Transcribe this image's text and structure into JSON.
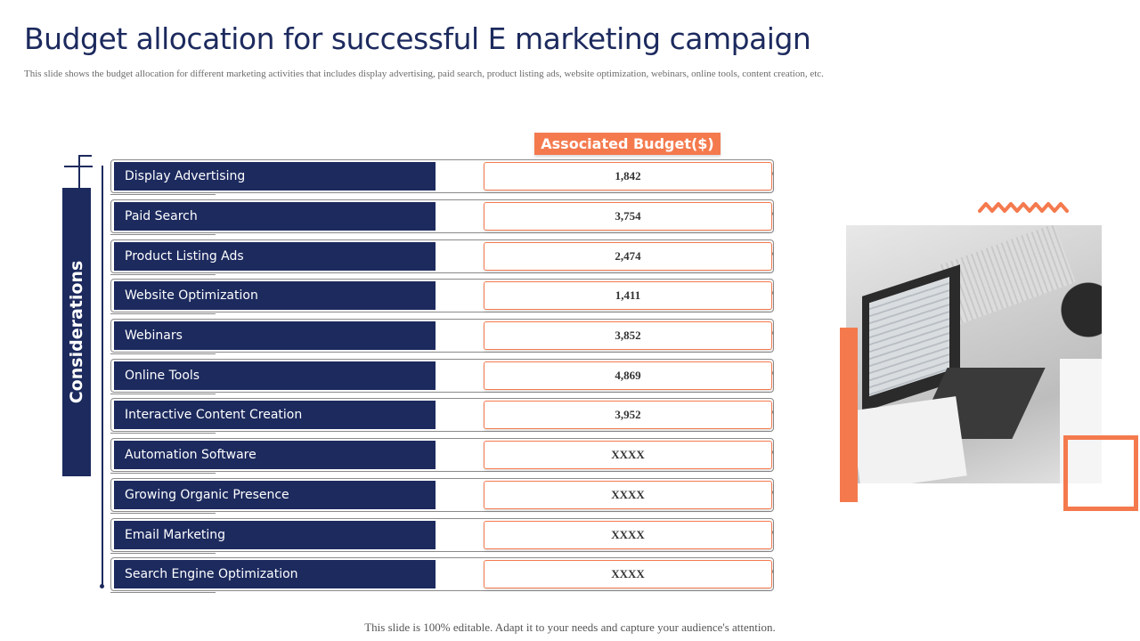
{
  "title": "Budget allocation for successful E marketing campaign",
  "subtitle": "This slide shows the budget allocation  for different marketing  activities that includes display advertising, paid search, product listing ads, website optimization, webinars, online  tools, content creation,  etc.",
  "considerations_label": "Considerations",
  "budget_header": "Associated Budget($)",
  "rows": [
    {
      "label": "Display Advertising",
      "value": "1,842"
    },
    {
      "label": "Paid Search",
      "value": "3,754"
    },
    {
      "label": "Product Listing Ads",
      "value": "2,474"
    },
    {
      "label": "Website Optimization",
      "value": "1,411"
    },
    {
      "label": "Webinars",
      "value": "3,852"
    },
    {
      "label": "Online Tools",
      "value": "4,869"
    },
    {
      "label": "Interactive Content Creation",
      "value": "3,952"
    },
    {
      "label": "Automation Software",
      "value": "XXXX"
    },
    {
      "label": "Growing Organic Presence",
      "value": "XXXX"
    },
    {
      "label": "Email Marketing",
      "value": "XXXX"
    },
    {
      "label": "Search Engine Optimization",
      "value": "XXXX"
    }
  ],
  "footer": "This slide is 100%  editable.  Adapt it to your needs and capture your audience's attention.",
  "colors": {
    "navy": "#1c2a5e",
    "accent": "#f47a4e"
  }
}
